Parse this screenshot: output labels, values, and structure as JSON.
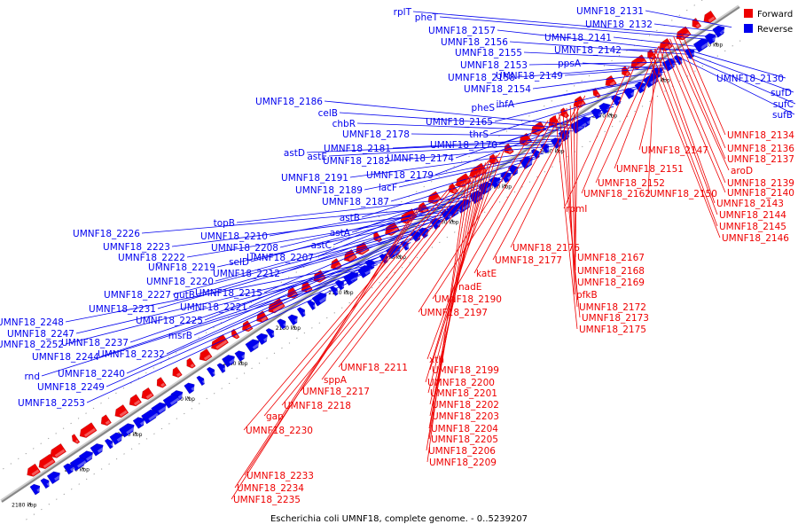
{
  "caption": "Escherichia coli UMNF18, complete genome. - 0..5239207",
  "legend": [
    {
      "label": "Forward",
      "color": "#ee0000"
    },
    {
      "label": "Reverse",
      "color": "#0000ee"
    }
  ],
  "colors": {
    "forward": "#ee0000",
    "reverse": "#0000ee",
    "backbone": "#888888"
  },
  "ruler": [
    "2050 kbp",
    "2060 kbp",
    "2070 kbp",
    "2080 kbp",
    "2090 kbp",
    "2100 kbp",
    "2110 kbp",
    "2120 kbp",
    "2130 kbp",
    "2140 kbp",
    "2150 kbp",
    "2160 kbp",
    "2170 kbp",
    "2180 kbp"
  ],
  "reverse_labels": [
    "rplT",
    "pheT",
    "UMNF18_2131",
    "UMNF18_2132",
    "UMNF18_2157",
    "UMNF18_2156",
    "UMNF18_2155",
    "UMNF18_2141",
    "UMNF18_2142",
    "UMNF18_2153",
    "UMNF18_2158",
    "UMNF18_2149",
    "ppsA",
    "UMNF18_2154",
    "ihfA",
    "pheS",
    "UMNF18_2165",
    "thrS",
    "UMNF18_2186",
    "celB",
    "chbR",
    "UMNF18_2178",
    "UMNF18_2181",
    "astD",
    "astE",
    "UMNF18_2182",
    "UMNF18_2170",
    "UMNF18_2174",
    "UMNF18_2179",
    "UMNF18_2191",
    "UMNF18_2189",
    "lacF",
    "UMNF18_2187",
    "astB",
    "topB",
    "UMNF18_2226",
    "UMNF18_2210",
    "astA",
    "UMNF18_2208",
    "UMNF18_2223",
    "astC",
    "UMNF18_2222",
    "selD",
    "UMNF18_2207",
    "UMNF18_2219",
    "UMNF18_2212",
    "UMNF18_2220",
    "UMNF18_2227",
    "gutB",
    "UMNF18_2215",
    "UMNF18_2231",
    "UMNF18_2221",
    "UMNF18_2225",
    "UMNF18_2248",
    "UMNF18_2247",
    "msrB",
    "UMNF18_2252",
    "UMNF18_2237",
    "UMNF18_2244",
    "UMNF18_2232",
    "UMNF18_2240",
    "rnd",
    "UMNF18_2249",
    "UMNF18_2253",
    "UMNF18_2130",
    "sufD",
    "sufC",
    "sufB"
  ],
  "forward_labels": [
    "UMNF18_2134",
    "UMNF18_2136",
    "UMNF18_2137",
    "UMNF18_2147",
    "aroD",
    "UMNF18_2151",
    "UMNF18_2139",
    "UMNF18_2152",
    "UMNF18_2140",
    "UMNF18_2162",
    "UMNF18_2150",
    "UMNF18_2143",
    "rpmI",
    "UMNF18_2144",
    "UMNF18_2145",
    "UMNF18_2146",
    "UMNF18_2176",
    "UMNF18_2167",
    "UMNF18_2177",
    "UMNF18_2168",
    "katE",
    "UMNF18_2169",
    "nadE",
    "pfkB",
    "UMNF18_2190",
    "UMNF18_2172",
    "UMNF18_2197",
    "UMNF18_2173",
    "UMNF18_2175",
    "xth",
    "UMNF18_2211",
    "UMNF18_2199",
    "sppA",
    "UMNF18_2200",
    "UMNF18_2217",
    "UMNF18_2201",
    "UMNF18_2218",
    "UMNF18_2202",
    "gap",
    "UMNF18_2203",
    "UMNF18_2230",
    "UMNF18_2204",
    "UMNF18_2205",
    "UMNF18_2206",
    "UMNF18_2209",
    "UMNF18_2233",
    "UMNF18_2234",
    "UMNF18_2235"
  ]
}
